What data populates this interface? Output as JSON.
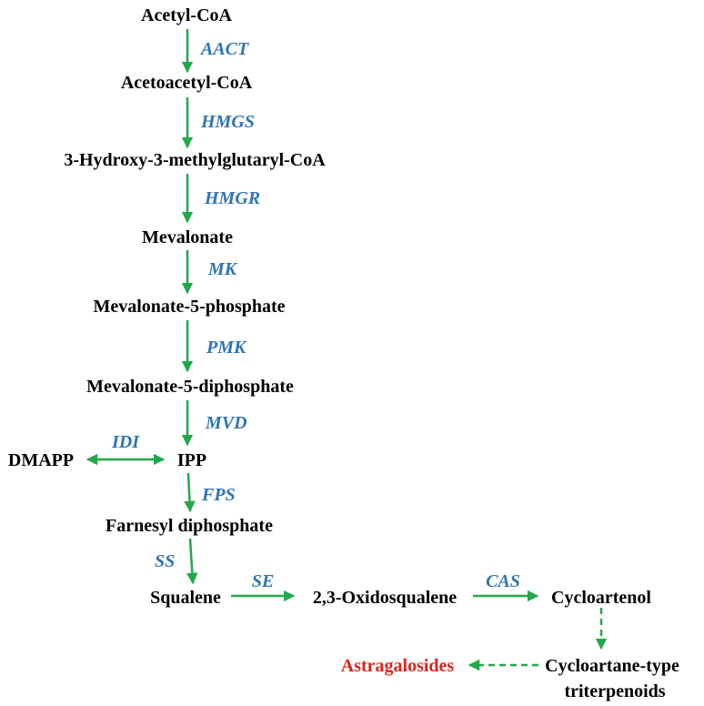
{
  "colors": {
    "arrow": "#22a84a",
    "enzyme": "#2e74b5",
    "metabolite": "#000000",
    "product": "#e3211c"
  },
  "metabolites": {
    "acetyl_coa": "Acetyl-CoA",
    "acetoacetyl_coa": "Acetoacetyl-CoA",
    "hmg_coa": "3-Hydroxy-3-methylglutaryl-CoA",
    "mevalonate": "Mevalonate",
    "mevalonate_5_phosphate": "Mevalonate-5-phosphate",
    "mevalonate_5_diphosphate": "Mevalonate-5-diphosphate",
    "dmapp": "DMAPP",
    "ipp": "IPP",
    "farnesyl_diphosphate": "Farnesyl diphosphate",
    "squalene": "Squalene",
    "oxidosqualene": "2,3-Oxidosqualene",
    "cycloartenol": "Cycloartenol",
    "cycloartane_line1": "Cycloartane-type",
    "cycloartane_line2": "triterpenoids",
    "astragalosides": "Astragalosides"
  },
  "enzymes": {
    "aact": "AACT",
    "hmgs": "HMGS",
    "hmgr": "HMGR",
    "mk": "MK",
    "pmk": "PMK",
    "mvd": "MVD",
    "idi": "IDI",
    "fps": "FPS",
    "ss": "SS",
    "se": "SE",
    "cas": "CAS"
  }
}
